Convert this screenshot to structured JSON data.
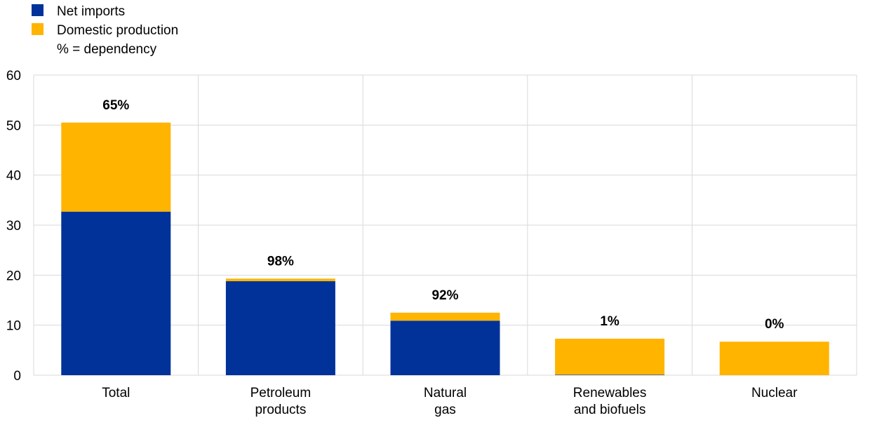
{
  "chart_data": {
    "type": "bar",
    "stacked": true,
    "categories": [
      "Total",
      "Petroleum products",
      "Natural gas",
      "Renewables and biofuels",
      "Nuclear"
    ],
    "category_lines": [
      [
        "Total"
      ],
      [
        "Petroleum",
        "products"
      ],
      [
        "Natural",
        "gas"
      ],
      [
        "Renewables",
        "and biofuels"
      ],
      [
        "Nuclear"
      ]
    ],
    "series": [
      {
        "name": "Net imports",
        "color": "#003299",
        "values": [
          32.7,
          18.8,
          10.9,
          0.1,
          0
        ]
      },
      {
        "name": "Domestic production",
        "color": "#FFB400",
        "values": [
          17.8,
          0.5,
          1.6,
          7.2,
          6.7
        ]
      }
    ],
    "data_labels": [
      "65%",
      "98%",
      "92%",
      "1%",
      "0%"
    ],
    "legend_note": "% = dependency",
    "ylim": [
      0,
      60
    ],
    "yticks": [
      0,
      10,
      20,
      30,
      40,
      50,
      60
    ],
    "grid": true,
    "legend_position": "top-left",
    "title": "",
    "xlabel": "",
    "ylabel": ""
  }
}
